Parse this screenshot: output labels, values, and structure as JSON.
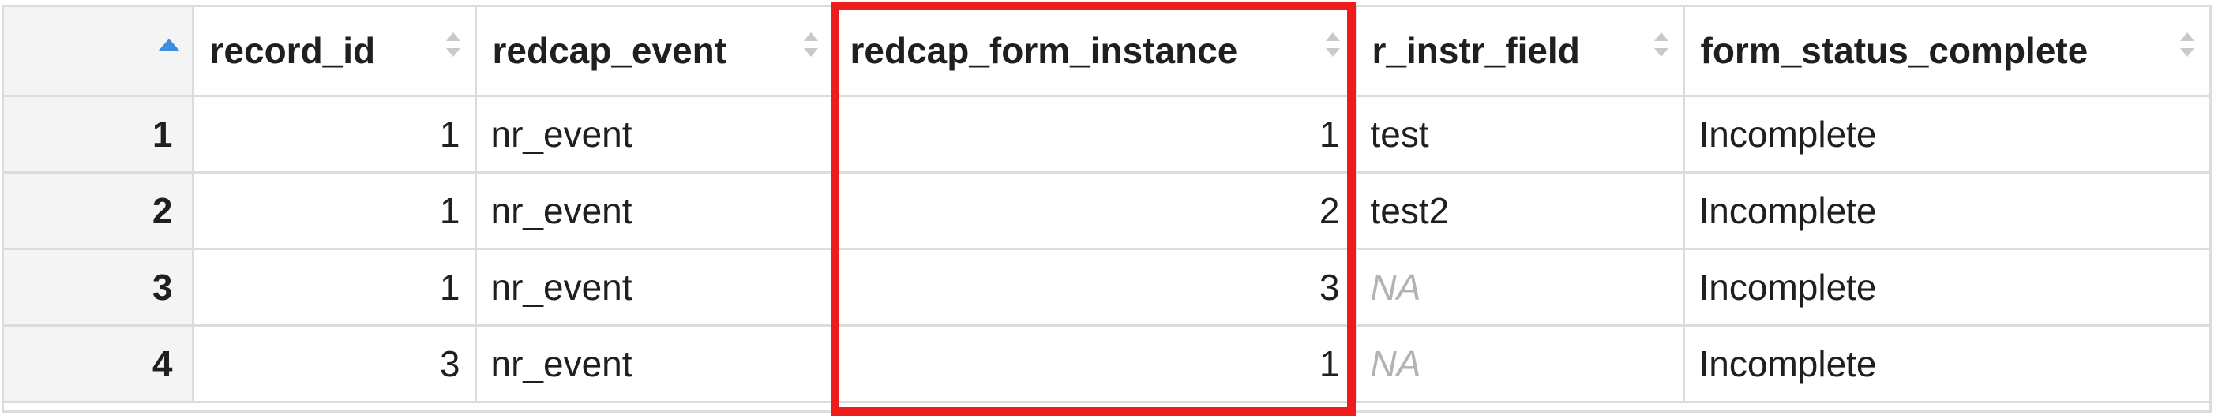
{
  "table": {
    "columns": [
      {
        "label": ""
      },
      {
        "label": "record_id"
      },
      {
        "label": "redcap_event"
      },
      {
        "label": "redcap_form_instance"
      },
      {
        "label": "r_instr_field"
      },
      {
        "label": "form_status_complete"
      }
    ],
    "rows": [
      {
        "row_num": "1",
        "record_id": "1",
        "redcap_event": "nr_event",
        "redcap_form_instance": "1",
        "r_instr_field": "test",
        "form_status_complete": "Incomplete"
      },
      {
        "row_num": "2",
        "record_id": "1",
        "redcap_event": "nr_event",
        "redcap_form_instance": "2",
        "r_instr_field": "test2",
        "form_status_complete": "Incomplete"
      },
      {
        "row_num": "3",
        "record_id": "1",
        "redcap_event": "nr_event",
        "redcap_form_instance": "3",
        "r_instr_field": "NA",
        "form_status_complete": "Incomplete"
      },
      {
        "row_num": "4",
        "record_id": "3",
        "redcap_event": "nr_event",
        "redcap_form_instance": "1",
        "r_instr_field": "NA",
        "form_status_complete": "Incomplete"
      }
    ]
  },
  "colors": {
    "highlight": "#ee1c1c",
    "sort_active": "#3d8de2",
    "na_text": "#b3b3b3",
    "grid": "#dcdcdc"
  },
  "icons": {
    "sort_active": "sort-ascending-icon",
    "sort_inactive": "sort-both-icon"
  }
}
